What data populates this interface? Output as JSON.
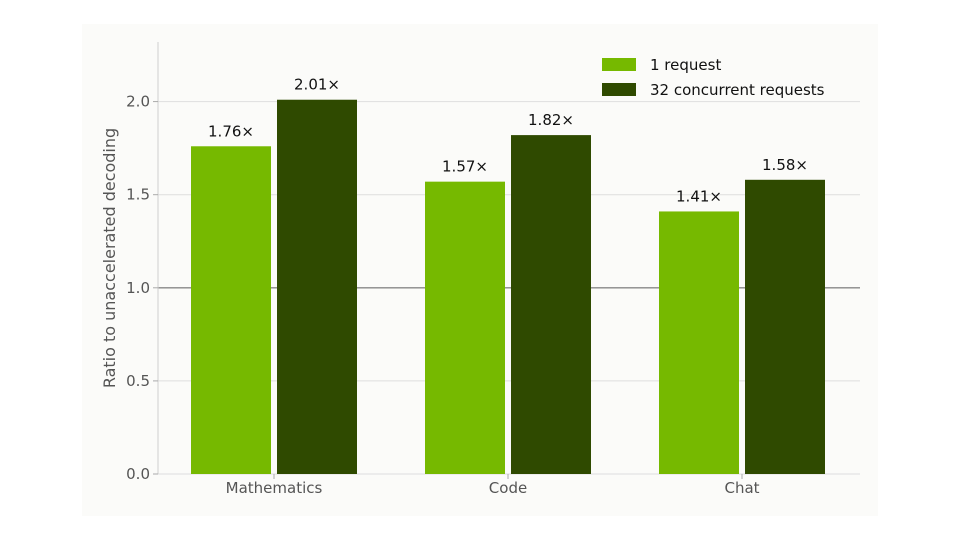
{
  "chart_data": {
    "type": "bar",
    "categories": [
      "Mathematics",
      "Code",
      "Chat"
    ],
    "series": [
      {
        "name": "1 request",
        "values": [
          1.76,
          1.57,
          1.41
        ],
        "labels": [
          "1.76×",
          "1.57×",
          "1.41×"
        ],
        "color": "#76b900"
      },
      {
        "name": "32 concurrent requests",
        "values": [
          2.01,
          1.82,
          1.58
        ],
        "labels": [
          "2.01×",
          "1.82×",
          "1.58×"
        ],
        "color": "#2f4a00"
      }
    ],
    "ylabel": "Ratio to unaccelerated decoding",
    "xlabel": "",
    "ylim": [
      0,
      2.32
    ],
    "yticks": [
      0.0,
      0.5,
      1.0,
      1.5,
      2.0
    ],
    "ytick_labels": [
      "0.0",
      "0.5",
      "1.0",
      "1.5",
      "2.0"
    ],
    "reference_line": 1.0,
    "grid": true,
    "legend_position": "top-right"
  }
}
